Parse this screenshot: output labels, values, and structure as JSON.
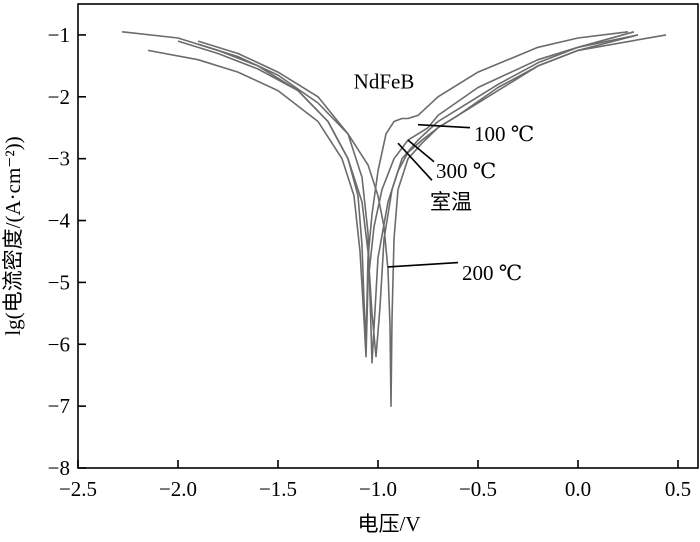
{
  "chart_data": {
    "type": "line",
    "xlabel": "电压/V",
    "ylabel": "lg(电流密度/(A·cm⁻²))",
    "xlim": [
      -2.5,
      0.6
    ],
    "ylim": [
      -8,
      -0.5
    ],
    "x_ticks": [
      -2.5,
      -2.0,
      -1.5,
      -1.0,
      -0.5,
      0.0,
      0.5
    ],
    "y_ticks": [
      -1,
      -2,
      -3,
      -4,
      -5,
      -6,
      -7,
      -8
    ],
    "x_tick_labels": [
      "−2.5",
      "−2.0",
      "−1.5",
      "−1.0",
      "−0.5",
      "0.0",
      "0.5"
    ],
    "y_tick_labels": [
      "−1",
      "−2",
      "−3",
      "−4",
      "−5",
      "−6",
      "−7",
      "−8"
    ],
    "grid": false,
    "series": [
      {
        "name": "NdFeB",
        "color": "#6b6b6b",
        "x": [
          -2.28,
          -2.0,
          -1.8,
          -1.6,
          -1.4,
          -1.25,
          -1.15,
          -1.1,
          -1.08,
          -1.07,
          -1.06,
          -1.05,
          -1.03,
          -1.0,
          -0.96,
          -0.92,
          -0.88,
          -0.85,
          -0.8,
          -0.7,
          -0.5,
          -0.2,
          0.0,
          0.25
        ],
        "y": [
          -0.95,
          -1.05,
          -1.25,
          -1.5,
          -1.9,
          -2.4,
          -3.0,
          -3.6,
          -4.4,
          -5.3,
          -6.0,
          -4.6,
          -3.9,
          -3.2,
          -2.6,
          -2.4,
          -2.35,
          -2.35,
          -2.3,
          -2.0,
          -1.6,
          -1.2,
          -1.05,
          -0.95
        ]
      },
      {
        "name": "室温",
        "color": "#6b6b6b",
        "x": [
          -2.15,
          -1.9,
          -1.7,
          -1.5,
          -1.3,
          -1.18,
          -1.12,
          -1.09,
          -1.07,
          -1.06,
          -1.05,
          -1.02,
          -0.98,
          -0.92,
          -0.85,
          -0.8,
          -0.75,
          -0.7,
          -0.5,
          -0.2,
          0.0,
          0.3
        ],
        "y": [
          -1.25,
          -1.4,
          -1.6,
          -1.9,
          -2.4,
          -3.0,
          -3.6,
          -4.5,
          -5.6,
          -6.2,
          -5.0,
          -4.1,
          -3.5,
          -3.0,
          -2.7,
          -2.6,
          -2.5,
          -2.3,
          -1.85,
          -1.4,
          -1.2,
          -1.0
        ]
      },
      {
        "name": "100 ℃",
        "color": "#6b6b6b",
        "x": [
          -2.0,
          -1.8,
          -1.6,
          -1.4,
          -1.25,
          -1.15,
          -1.08,
          -1.05,
          -1.03,
          -1.01,
          -0.99,
          -0.97,
          -0.93,
          -0.88,
          -0.8,
          -0.7,
          -0.6,
          -0.4,
          -0.2,
          0.0,
          0.28
        ],
        "y": [
          -1.1,
          -1.3,
          -1.55,
          -1.9,
          -2.4,
          -3.0,
          -3.7,
          -4.5,
          -5.5,
          -6.2,
          -5.4,
          -4.3,
          -3.5,
          -3.0,
          -2.7,
          -2.4,
          -2.2,
          -1.8,
          -1.45,
          -1.2,
          -0.95
        ]
      },
      {
        "name": "200 ℃",
        "color": "#6b6b6b",
        "x": [
          -1.9,
          -1.7,
          -1.5,
          -1.3,
          -1.15,
          -1.05,
          -1.0,
          -0.97,
          -0.95,
          -0.94,
          -0.935,
          -0.93,
          -0.92,
          -0.9,
          -0.85,
          -0.78,
          -0.7,
          -0.6,
          -0.4,
          -0.2,
          0.0,
          0.3
        ],
        "y": [
          -1.15,
          -1.35,
          -1.65,
          -2.1,
          -2.6,
          -3.1,
          -3.6,
          -4.1,
          -4.8,
          -5.7,
          -7.0,
          -5.6,
          -4.3,
          -3.5,
          -3.0,
          -2.75,
          -2.5,
          -2.3,
          -1.9,
          -1.5,
          -1.25,
          -1.0
        ]
      },
      {
        "name": "300 ℃",
        "color": "#6b6b6b",
        "x": [
          -1.9,
          -1.7,
          -1.5,
          -1.3,
          -1.15,
          -1.08,
          -1.05,
          -1.04,
          -1.03,
          -1.0,
          -0.95,
          -0.9,
          -0.85,
          -0.78,
          -0.7,
          -0.6,
          -0.4,
          -0.2,
          0.0,
          0.44
        ],
        "y": [
          -1.1,
          -1.3,
          -1.6,
          -2.0,
          -2.6,
          -3.3,
          -4.2,
          -5.2,
          -6.3,
          -4.6,
          -3.7,
          -3.2,
          -2.9,
          -2.7,
          -2.5,
          -2.3,
          -1.85,
          -1.5,
          -1.25,
          -1.0
        ]
      }
    ],
    "annotations": [
      {
        "text": "NdFeB",
        "label_at": [
          -0.97,
          -1.75
        ],
        "anchor": "middle",
        "point": null
      },
      {
        "text": "100 ℃",
        "label_at": [
          -0.52,
          -2.6
        ],
        "anchor": "start",
        "point": [
          -0.8,
          -2.45
        ],
        "line_end": [
          -0.54,
          -2.5
        ]
      },
      {
        "text": "300 ℃",
        "label_at": [
          -0.71,
          -3.2
        ],
        "anchor": "start",
        "point": [
          -0.85,
          -2.7
        ],
        "line_end": [
          -0.72,
          -3.05
        ]
      },
      {
        "text": "室温",
        "label_at": [
          -0.74,
          -3.7
        ],
        "anchor": "start",
        "point": [
          -0.9,
          -2.75
        ],
        "line_end": [
          -0.73,
          -3.35
        ]
      },
      {
        "text": "200 ℃",
        "label_at": [
          -0.58,
          -4.85
        ],
        "anchor": "start",
        "point": [
          -0.95,
          -4.75
        ],
        "line_end": [
          -0.6,
          -4.68
        ]
      }
    ]
  }
}
